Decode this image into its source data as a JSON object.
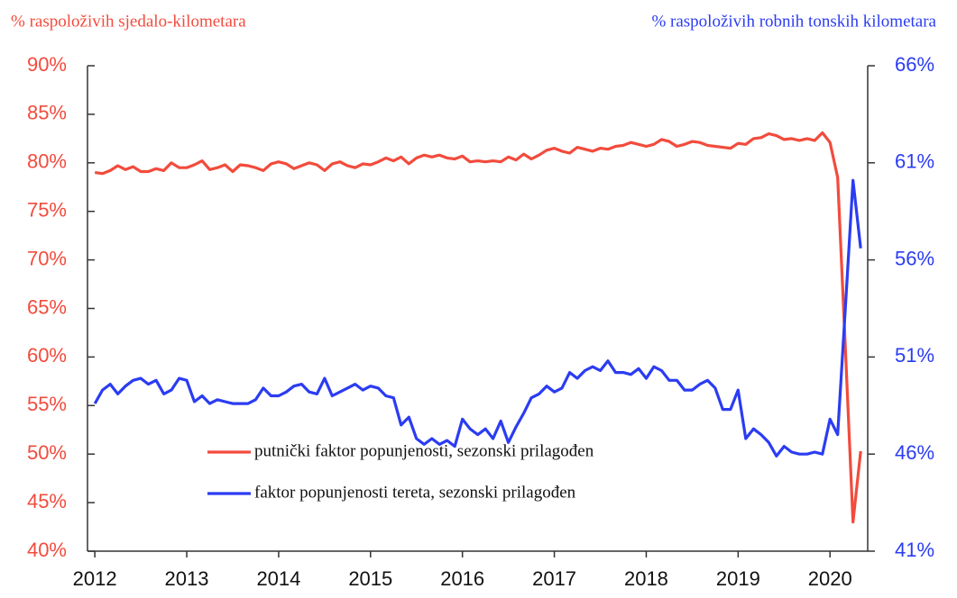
{
  "chart_data": {
    "type": "line",
    "y_label": "% raspoloživih sjedalo-kilometara",
    "y2_label": "% raspoloživih robnih tonskih kilometara",
    "x": [
      2012,
      2012.083,
      2012.167,
      2012.25,
      2012.333,
      2012.417,
      2012.5,
      2012.583,
      2012.667,
      2012.75,
      2012.833,
      2012.917,
      2013,
      2013.083,
      2013.167,
      2013.25,
      2013.333,
      2013.417,
      2013.5,
      2013.583,
      2013.667,
      2013.75,
      2013.833,
      2013.917,
      2014,
      2014.083,
      2014.167,
      2014.25,
      2014.333,
      2014.417,
      2014.5,
      2014.583,
      2014.667,
      2014.75,
      2014.833,
      2014.917,
      2015,
      2015.083,
      2015.167,
      2015.25,
      2015.333,
      2015.417,
      2015.5,
      2015.583,
      2015.667,
      2015.75,
      2015.833,
      2015.917,
      2016,
      2016.083,
      2016.167,
      2016.25,
      2016.333,
      2016.417,
      2016.5,
      2016.583,
      2016.667,
      2016.75,
      2016.833,
      2016.917,
      2017,
      2017.083,
      2017.167,
      2017.25,
      2017.333,
      2017.417,
      2017.5,
      2017.583,
      2017.667,
      2017.75,
      2017.833,
      2017.917,
      2018,
      2018.083,
      2018.167,
      2018.25,
      2018.333,
      2018.417,
      2018.5,
      2018.583,
      2018.667,
      2018.75,
      2018.833,
      2018.917,
      2019,
      2019.083,
      2019.167,
      2019.25,
      2019.333,
      2019.417,
      2019.5,
      2019.583,
      2019.667,
      2019.75,
      2019.833,
      2019.917,
      2020,
      2020.083,
      2020.167,
      2020.25,
      2020.333
    ],
    "series": [
      {
        "name": "putnički faktor popunjenosti, sezonski prilagođen",
        "color": "#f24b3c",
        "axis": "y",
        "values": [
          79.0,
          78.9,
          79.2,
          79.7,
          79.3,
          79.6,
          79.1,
          79.1,
          79.4,
          79.2,
          80.0,
          79.5,
          79.5,
          79.8,
          80.2,
          79.3,
          79.5,
          79.8,
          79.1,
          79.8,
          79.7,
          79.5,
          79.2,
          79.9,
          80.1,
          79.9,
          79.4,
          79.7,
          80.0,
          79.8,
          79.2,
          79.9,
          80.1,
          79.7,
          79.5,
          79.9,
          79.8,
          80.1,
          80.5,
          80.2,
          80.6,
          79.9,
          80.5,
          80.8,
          80.6,
          80.8,
          80.5,
          80.4,
          80.7,
          80.1,
          80.2,
          80.1,
          80.2,
          80.1,
          80.6,
          80.3,
          80.9,
          80.4,
          80.8,
          81.3,
          81.5,
          81.2,
          81.0,
          81.6,
          81.4,
          81.2,
          81.5,
          81.4,
          81.7,
          81.8,
          82.1,
          81.9,
          81.7,
          81.9,
          82.4,
          82.2,
          81.7,
          81.9,
          82.2,
          82.1,
          81.8,
          81.7,
          81.6,
          81.5,
          82.0,
          81.9,
          82.5,
          82.6,
          83.0,
          82.8,
          82.4,
          82.5,
          82.3,
          82.5,
          82.3,
          83.1,
          82.1,
          78.5,
          61.0,
          43.0,
          50.3
        ]
      },
      {
        "name": "faktor popunjenosti tereta, sezonski prilagođen",
        "color": "#2b3cf2",
        "axis": "y2",
        "values": [
          48.6,
          49.3,
          49.6,
          49.1,
          49.5,
          49.8,
          49.9,
          49.6,
          49.8,
          49.1,
          49.3,
          49.9,
          49.8,
          48.7,
          49.0,
          48.6,
          48.8,
          48.7,
          48.6,
          48.6,
          48.6,
          48.8,
          49.4,
          49.0,
          49.0,
          49.2,
          49.5,
          49.6,
          49.2,
          49.1,
          49.9,
          49.0,
          49.2,
          49.4,
          49.6,
          49.3,
          49.5,
          49.4,
          49.0,
          48.9,
          47.5,
          47.9,
          46.8,
          46.5,
          46.8,
          46.5,
          46.7,
          46.4,
          47.8,
          47.3,
          47.0,
          47.3,
          46.8,
          47.7,
          46.6,
          47.4,
          48.1,
          48.9,
          49.1,
          49.5,
          49.2,
          49.4,
          50.2,
          49.9,
          50.3,
          50.5,
          50.3,
          50.8,
          50.2,
          50.2,
          50.1,
          50.4,
          49.9,
          50.5,
          50.3,
          49.8,
          49.8,
          49.3,
          49.3,
          49.6,
          49.8,
          49.4,
          48.3,
          48.3,
          49.3,
          46.8,
          47.3,
          47.0,
          46.6,
          45.9,
          46.4,
          46.1,
          46.0,
          46.0,
          46.1,
          46.0,
          47.8,
          47.0,
          53.5,
          60.1,
          56.6
        ]
      }
    ],
    "xlim": [
      2011.92,
      2020.41
    ],
    "xticks": [
      2012,
      2013,
      2014,
      2015,
      2016,
      2017,
      2018,
      2019,
      2020
    ],
    "ylim": [
      40,
      90
    ],
    "yticks": [
      {
        "value": 40,
        "label": "40%"
      },
      {
        "value": 45,
        "label": "45%"
      },
      {
        "value": 50,
        "label": "50%"
      },
      {
        "value": 55,
        "label": "55%"
      },
      {
        "value": 60,
        "label": "60%"
      },
      {
        "value": 65,
        "label": "65%"
      },
      {
        "value": 70,
        "label": "70%"
      },
      {
        "value": 75,
        "label": "75%"
      },
      {
        "value": 80,
        "label": "80%"
      },
      {
        "value": 85,
        "label": "85%"
      },
      {
        "value": 90,
        "label": "90%"
      }
    ],
    "y2lim": [
      41,
      66
    ],
    "y2ticks": [
      {
        "value": 41,
        "label": "41%"
      },
      {
        "value": 46,
        "label": "46%"
      },
      {
        "value": 51,
        "label": "51%"
      },
      {
        "value": 56,
        "label": "56%"
      },
      {
        "value": 61,
        "label": "61%"
      },
      {
        "value": 66,
        "label": "66%"
      }
    ],
    "grid": false
  }
}
